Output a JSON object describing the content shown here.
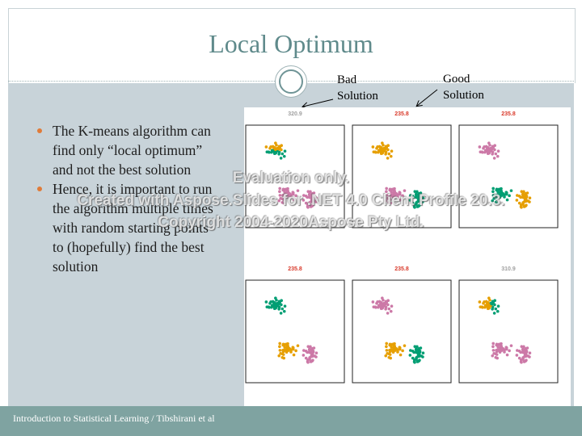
{
  "slide": {
    "title": "Local Optimum",
    "bullets": [
      "The K-means algorithm can find only “local optimum” and not the best solution",
      "Hence, it is important to run the algorithm multiple times with random starting points to (hopefully) find the best solution"
    ],
    "annotations": {
      "bad_line1": "Bad",
      "bad_line2": "Solution",
      "good_line1": "Good",
      "good_line2": "Solution"
    },
    "footer": "Introduction to Statistical Learning  / Tibshirani et al"
  },
  "watermark": {
    "line1": "Evaluation only.",
    "line2": "Created with Aspose.Slides for .NET 4.0 Client Profile 20.3.",
    "line3": "Copyright 2004-2020Aspose Pty Ltd."
  },
  "figure": {
    "panels": [
      {
        "label": "320.9",
        "label_color": "#a0a0a0",
        "colors": [
          "#e69f00",
          "#009e73",
          "#cc79a7"
        ],
        "mode": "bad_top"
      },
      {
        "label": "235.8",
        "label_color": "#d93a2b",
        "colors": [
          "#e69f00",
          "#cc79a7",
          "#009e73"
        ],
        "mode": "good"
      },
      {
        "label": "235.8",
        "label_color": "#d93a2b",
        "colors": [
          "#cc79a7",
          "#009e73",
          "#e69f00"
        ],
        "mode": "good"
      },
      {
        "label": "235.8",
        "label_color": "#d93a2b",
        "colors": [
          "#009e73",
          "#e69f00",
          "#cc79a7"
        ],
        "mode": "good"
      },
      {
        "label": "235.8",
        "label_color": "#d93a2b",
        "colors": [
          "#cc79a7",
          "#e69f00",
          "#009e73"
        ],
        "mode": "good"
      },
      {
        "label": "310.9",
        "label_color": "#a0a0a0",
        "colors": [
          "#e69f00",
          "#cc79a7",
          "#009e73"
        ],
        "mode": "bad_bottom"
      }
    ]
  }
}
